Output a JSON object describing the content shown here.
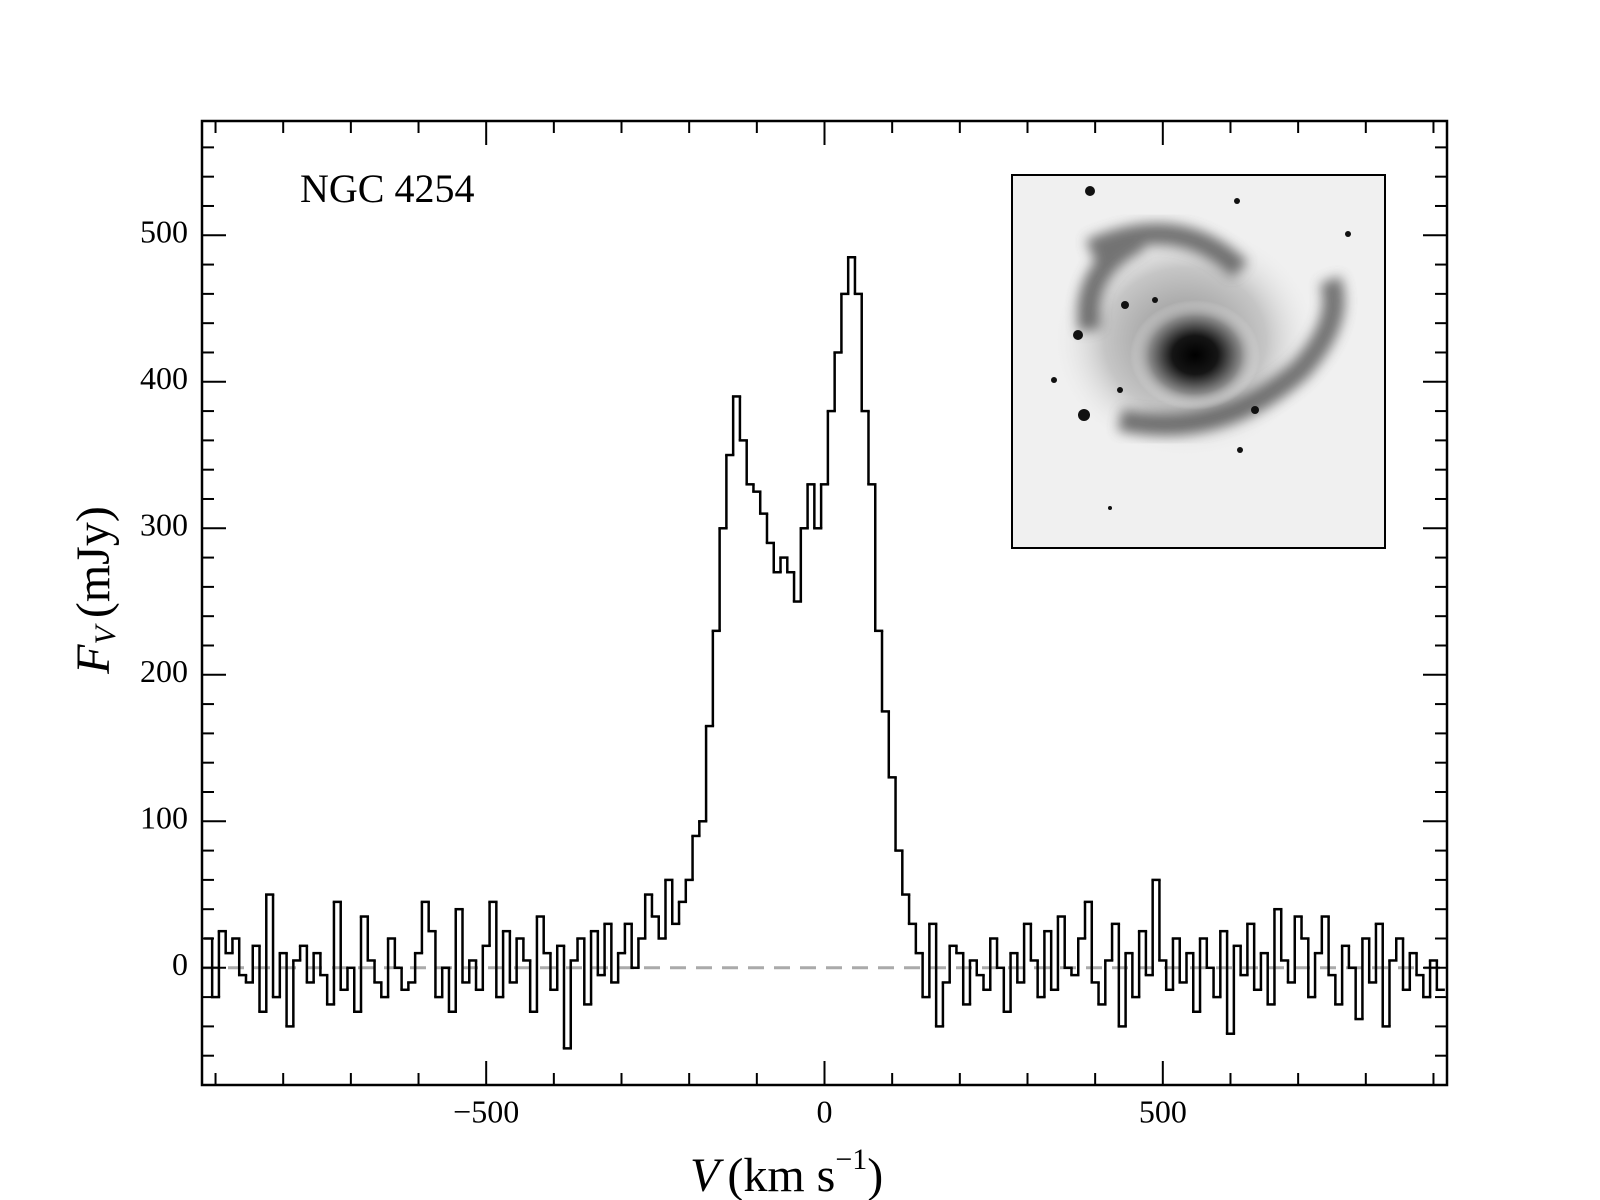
{
  "chart_data": {
    "type": "step",
    "title": "NGC 4254",
    "xlabel": {
      "symbol": "V",
      "unit": "(km s",
      "superscript": "−1",
      "close": ")"
    },
    "ylabel": {
      "symbol": "F",
      "subscript": "V",
      "unit": "(mJy)"
    },
    "color": "#000000",
    "baseline": {
      "value": 0,
      "color": "#aaaaaa"
    },
    "xlim": [
      -920,
      920
    ],
    "ylim": [
      -80,
      578
    ],
    "xticks": [
      {
        "value": -500,
        "label": "−500"
      },
      0,
      500
    ],
    "yticks": [
      0,
      100,
      200,
      300,
      400,
      500
    ],
    "xminorticks": [
      -900,
      -800,
      -700,
      -600,
      -400,
      -300,
      -200,
      -100,
      100,
      200,
      300,
      400,
      600,
      700,
      800,
      900
    ],
    "yminorticks": [
      -80,
      -60,
      -40,
      -20,
      20,
      40,
      60,
      80,
      120,
      140,
      160,
      180,
      220,
      240,
      260,
      280,
      320,
      340,
      360,
      380,
      420,
      440,
      460,
      480,
      520,
      540,
      560
    ],
    "x": [
      -910,
      -900,
      -890,
      -880,
      -870,
      -860,
      -850,
      -840,
      -830,
      -820,
      -810,
      -800,
      -790,
      -780,
      -770,
      -760,
      -750,
      -740,
      -730,
      -720,
      -710,
      -700,
      -690,
      -680,
      -670,
      -660,
      -650,
      -640,
      -630,
      -620,
      -610,
      -600,
      -590,
      -580,
      -570,
      -560,
      -550,
      -540,
      -530,
      -520,
      -510,
      -500,
      -490,
      -480,
      -470,
      -460,
      -450,
      -440,
      -430,
      -420,
      -410,
      -400,
      -390,
      -380,
      -370,
      -360,
      -350,
      -340,
      -330,
      -320,
      -310,
      -300,
      -290,
      -280,
      -270,
      -260,
      -250,
      -240,
      -230,
      -220,
      -210,
      -200,
      -190,
      -180,
      -170,
      -160,
      -150,
      -140,
      -130,
      -120,
      -110,
      -100,
      -90,
      -80,
      -70,
      -60,
      -50,
      -40,
      -30,
      -20,
      -10,
      0,
      10,
      20,
      30,
      40,
      50,
      60,
      70,
      80,
      90,
      100,
      110,
      120,
      130,
      140,
      150,
      160,
      170,
      180,
      190,
      200,
      210,
      220,
      230,
      240,
      250,
      260,
      270,
      280,
      290,
      300,
      310,
      320,
      330,
      340,
      350,
      360,
      370,
      380,
      390,
      400,
      410,
      420,
      430,
      440,
      450,
      460,
      470,
      480,
      490,
      500,
      510,
      520,
      530,
      540,
      550,
      560,
      570,
      580,
      590,
      600,
      610,
      620,
      630,
      640,
      650,
      660,
      670,
      680,
      690,
      700,
      710,
      720,
      730,
      740,
      750,
      760,
      770,
      780,
      790,
      800,
      810,
      820,
      830,
      840,
      850,
      860,
      870,
      880,
      890,
      900,
      910
    ],
    "values": [
      20,
      -20,
      25,
      10,
      20,
      -5,
      -10,
      15,
      -30,
      50,
      -20,
      10,
      -40,
      5,
      15,
      -10,
      10,
      -5,
      -25,
      45,
      -15,
      0,
      -30,
      35,
      5,
      -10,
      -20,
      20,
      0,
      -15,
      -10,
      10,
      45,
      25,
      -20,
      0,
      -30,
      40,
      -10,
      5,
      -15,
      15,
      45,
      -20,
      25,
      -10,
      20,
      5,
      -30,
      35,
      10,
      -15,
      15,
      -55,
      5,
      20,
      -25,
      25,
      -5,
      30,
      -10,
      10,
      30,
      0,
      20,
      50,
      35,
      20,
      60,
      30,
      45,
      60,
      90,
      100,
      165,
      230,
      300,
      350,
      390,
      360,
      330,
      325,
      310,
      290,
      270,
      280,
      270,
      250,
      300,
      330,
      300,
      330,
      380,
      420,
      460,
      485,
      460,
      380,
      330,
      230,
      175,
      130,
      80,
      50,
      30,
      10,
      -20,
      30,
      -40,
      -10,
      15,
      10,
      -25,
      5,
      -5,
      -15,
      20,
      0,
      -30,
      10,
      -10,
      30,
      5,
      -20,
      25,
      -15,
      35,
      0,
      -5,
      20,
      45,
      -10,
      -25,
      5,
      30,
      -40,
      10,
      -20,
      25,
      -5,
      60,
      5,
      -15,
      20,
      -10,
      10,
      -30,
      20,
      0,
      -20,
      25,
      -45,
      15,
      -5,
      30,
      -15,
      10,
      -25,
      40,
      5,
      -10,
      35,
      20,
      -20,
      10,
      35,
      -5,
      -25,
      15,
      0,
      -35,
      20,
      -10,
      30,
      -40,
      5,
      20,
      -15,
      10,
      -5,
      -20,
      5,
      -15
    ]
  }
}
